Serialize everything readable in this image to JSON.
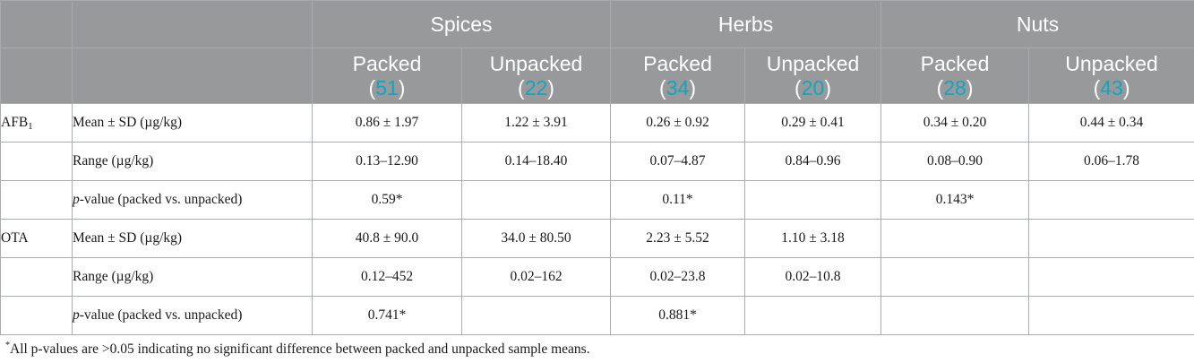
{
  "table": {
    "group_headers": [
      "Spices",
      "Herbs",
      "Nuts"
    ],
    "sub_headers": [
      {
        "label": "Packed",
        "open": "(",
        "n": "51",
        "close": ")"
      },
      {
        "label": "Unpacked",
        "open": "(",
        "n": "22",
        "close": ")"
      },
      {
        "label": "Packed",
        "open": "(",
        "n": "34",
        "close": ")"
      },
      {
        "label": "Unpacked",
        "open": "(",
        "n": "20",
        "close": ")"
      },
      {
        "label": "Packed",
        "open": "(",
        "n": "28",
        "close": ")"
      },
      {
        "label": "Unpacked",
        "open": "(",
        "n": "43",
        "close": ")"
      }
    ],
    "afb": {
      "group": {
        "base": "AFB",
        "sub": "1"
      },
      "mean": {
        "label": "Mean ± SD (µg/kg)",
        "values": [
          "0.86 ± 1.97",
          "1.22 ± 3.91",
          "0.26 ± 0.92",
          "0.29 ± 0.41",
          "0.34 ± 0.20",
          "0.44 ± 0.34"
        ]
      },
      "range": {
        "label": "Range (µg/kg)",
        "values": [
          "0.13–12.90",
          "0.14–18.40",
          "0.07–4.87",
          "0.84–0.96",
          "0.08–0.90",
          "0.06–1.78"
        ]
      },
      "pvalue": {
        "label_italic": "p",
        "label_rest": "-value (packed vs. unpacked)",
        "values": [
          "0.59*",
          "",
          "0.11*",
          "",
          "0.143*",
          ""
        ]
      }
    },
    "ota": {
      "group": "OTA",
      "mean": {
        "label": "Mean ± SD (µg/kg)",
        "values": [
          "40.8 ± 90.0",
          "34.0 ± 80.50",
          "2.23 ± 5.52",
          "1.10 ± 3.18",
          "",
          ""
        ]
      },
      "range": {
        "label": "Range (µg/kg)",
        "values": [
          "0.12–452",
          "0.02–162",
          "0.02–23.8",
          "0.02–10.8",
          "",
          ""
        ]
      },
      "pvalue": {
        "label_italic": "p",
        "label_rest": "-value (packed vs. unpacked)",
        "values": [
          "0.741*",
          "",
          "0.881*",
          "",
          "",
          ""
        ]
      }
    }
  },
  "footnote": {
    "mark": "*",
    "text": "All p-values are >0.05 indicating no significant difference between packed and unpacked sample means."
  },
  "colors": {
    "header_bg": "#97999b",
    "header_text": "#ffffff",
    "count_accent": "#10a5c0",
    "border": "#a9acaf"
  }
}
